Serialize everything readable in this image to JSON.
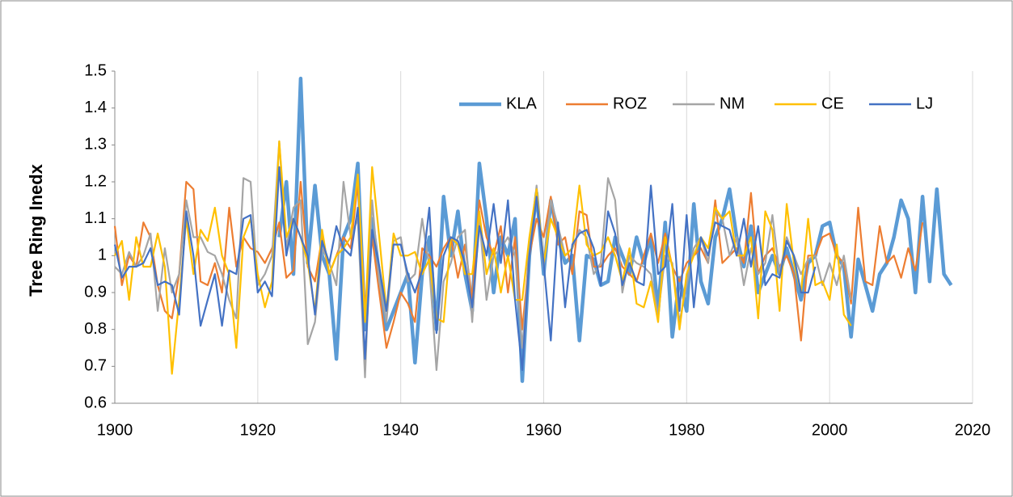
{
  "chart_data": {
    "type": "line",
    "ylabel": "Tree Ring Inedx",
    "x": [
      1900,
      1901,
      1902,
      1903,
      1904,
      1905,
      1906,
      1907,
      1908,
      1909,
      1910,
      1911,
      1912,
      1913,
      1914,
      1915,
      1916,
      1917,
      1918,
      1919,
      1920,
      1921,
      1922,
      1923,
      1924,
      1925,
      1926,
      1927,
      1928,
      1929,
      1930,
      1931,
      1932,
      1933,
      1934,
      1935,
      1936,
      1937,
      1938,
      1939,
      1940,
      1941,
      1942,
      1943,
      1944,
      1945,
      1946,
      1947,
      1948,
      1949,
      1950,
      1951,
      1952,
      1953,
      1954,
      1955,
      1956,
      1957,
      1958,
      1959,
      1960,
      1961,
      1962,
      1963,
      1964,
      1965,
      1966,
      1967,
      1968,
      1969,
      1970,
      1971,
      1972,
      1973,
      1974,
      1975,
      1976,
      1977,
      1978,
      1979,
      1980,
      1981,
      1982,
      1983,
      1984,
      1985,
      1986,
      1987,
      1988,
      1989,
      1990,
      1991,
      1992,
      1993,
      1994,
      1995,
      1996,
      1997,
      1998,
      1999,
      2000,
      2001,
      2002,
      2003,
      2004,
      2005,
      2006,
      2007,
      2008,
      2009,
      2010,
      2011,
      2012,
      2013,
      2014,
      2015,
      2016,
      2017
    ],
    "series": [
      {
        "name": "KLA",
        "color": "#5b9bd5",
        "values": [
          null,
          null,
          null,
          null,
          null,
          null,
          null,
          null,
          null,
          null,
          null,
          null,
          null,
          null,
          null,
          null,
          null,
          null,
          null,
          null,
          null,
          null,
          null,
          1.05,
          1.2,
          0.95,
          1.48,
          0.98,
          1.19,
          1.0,
          0.95,
          0.72,
          1.05,
          1.1,
          1.25,
          0.8,
          1.1,
          0.95,
          0.8,
          0.85,
          0.9,
          0.95,
          0.71,
          0.95,
          1.05,
          0.8,
          1.16,
          1.0,
          1.12,
          0.95,
          0.85,
          1.25,
          1.1,
          0.9,
          1.05,
          1.0,
          1.1,
          0.66,
          1.0,
          1.17,
          0.95,
          1.15,
          1.05,
          0.98,
          1.0,
          0.77,
          1.0,
          0.99,
          0.92,
          0.93,
          1.05,
          1.0,
          0.95,
          1.05,
          0.98,
          1.05,
          0.85,
          1.09,
          0.78,
          0.94,
          0.85,
          1.14,
          0.93,
          0.87,
          1.05,
          1.1,
          1.18,
          1.05,
          0.97,
          1.08,
          0.9,
          0.95,
          1.0,
          0.95,
          1.02,
          0.95,
          0.88,
          0.98,
          1.0,
          1.08,
          1.09,
          1.0,
          0.97,
          0.78,
          0.99,
          0.92,
          0.85,
          0.95,
          0.98,
          1.05,
          1.15,
          1.1,
          0.9,
          1.16,
          0.93,
          1.18,
          0.95,
          0.92
        ]
      },
      {
        "name": "ROZ",
        "color": "#ed7d31",
        "values": [
          1.08,
          0.92,
          1.0,
          0.97,
          1.09,
          1.05,
          0.92,
          0.85,
          0.83,
          0.95,
          1.2,
          1.18,
          0.93,
          0.92,
          0.98,
          0.9,
          1.13,
          0.97,
          1.05,
          1.02,
          1.01,
          0.98,
          1.02,
          1.09,
          0.94,
          0.96,
          1.2,
          0.97,
          0.93,
          1.05,
          0.95,
          1.0,
          1.05,
          1.02,
          1.2,
          0.85,
          1.05,
          0.9,
          0.75,
          0.82,
          0.9,
          0.87,
          0.82,
          1.02,
          1.0,
          0.97,
          1.02,
          1.05,
          0.94,
          1.03,
          0.88,
          1.15,
          1.05,
          1.0,
          1.08,
          0.9,
          1.05,
          0.8,
          1.0,
          1.1,
          1.05,
          1.16,
          1.03,
          1.05,
          0.95,
          1.12,
          1.11,
          0.97,
          0.97,
          1.0,
          1.02,
          0.97,
          0.95,
          0.93,
          1.0,
          1.06,
          0.98,
          1.06,
          0.97,
          0.93,
          0.98,
          1.0,
          1.02,
          0.98,
          1.15,
          0.98,
          1.0,
          1.02,
          0.98,
          1.17,
          0.95,
          1.0,
          1.02,
          0.97,
          1.0,
          0.95,
          0.77,
          1.0,
          1.0,
          1.05,
          1.06,
          1.0,
          0.98,
          0.87,
          1.13,
          0.93,
          0.92,
          1.08,
          0.98,
          1.0,
          0.94,
          1.02,
          0.96,
          1.09,
          null,
          null,
          null,
          null
        ]
      },
      {
        "name": "NM",
        "color": "#a5a5a5",
        "values": [
          0.97,
          0.95,
          1.01,
          0.97,
          1.0,
          1.06,
          0.85,
          1.02,
          0.9,
          0.95,
          1.15,
          1.05,
          1.05,
          1.01,
          1.0,
          0.95,
          0.88,
          0.83,
          1.21,
          1.2,
          0.92,
          0.95,
          1.0,
          1.31,
          1.02,
          1.13,
          1.15,
          0.76,
          0.82,
          1.02,
          0.98,
          0.92,
          1.2,
          1.05,
          1.1,
          0.67,
          1.15,
          0.93,
          0.82,
          1.04,
          1.05,
          0.93,
          0.95,
          1.1,
          0.97,
          0.69,
          0.93,
          0.98,
          1.05,
          1.07,
          0.82,
          1.1,
          0.88,
          1.0,
          1.02,
          1.05,
          1.0,
          0.75,
          1.0,
          1.19,
          0.97,
          1.15,
          1.08,
          1.0,
          1.02,
          1.07,
          1.05,
          0.95,
          0.98,
          1.21,
          1.15,
          0.9,
          1.0,
          0.98,
          0.97,
          0.95,
          0.84,
          1.0,
          0.98,
          0.82,
          0.92,
          1.02,
          1.05,
          0.98,
          1.12,
          1.1,
          1.0,
          1.05,
          0.92,
          1.02,
          0.95,
          0.98,
          1.11,
          0.95,
          1.05,
          1.0,
          0.95,
          0.99,
          1.0,
          0.92,
          0.98,
          0.92,
          1.0,
          0.88,
          null,
          null,
          null,
          null,
          null,
          null,
          null,
          null,
          null,
          null,
          null,
          null,
          null,
          null
        ]
      },
      {
        "name": "CE",
        "color": "#ffc000",
        "values": [
          1.0,
          1.04,
          0.88,
          1.05,
          0.97,
          0.97,
          1.06,
          0.97,
          0.68,
          0.88,
          1.1,
          0.95,
          1.07,
          1.04,
          1.13,
          1.0,
          0.95,
          0.75,
          1.05,
          1.1,
          0.95,
          0.86,
          0.93,
          1.31,
          1.05,
          1.1,
          1.05,
          0.98,
          0.85,
          1.07,
          0.95,
          1.0,
          1.02,
          1.05,
          1.22,
          0.82,
          1.24,
          1.05,
          0.85,
          1.06,
          1.0,
          1.0,
          1.01,
          0.95,
          0.99,
          0.83,
          0.82,
          1.05,
          1.03,
          0.95,
          0.95,
          1.12,
          0.95,
          1.02,
          0.9,
          1.0,
          0.88,
          0.88,
          1.05,
          1.18,
          0.98,
          1.1,
          1.05,
          1.0,
          1.02,
          1.19,
          1.03,
          1.0,
          1.01,
          1.05,
          1.0,
          0.93,
          1.02,
          0.87,
          0.86,
          0.93,
          0.82,
          1.05,
          0.97,
          0.8,
          0.95,
          1.0,
          1.05,
          1.02,
          1.13,
          1.1,
          1.12,
          1.0,
          1.0,
          1.05,
          0.83,
          1.12,
          1.07,
          0.85,
          1.14,
          0.98,
          0.9,
          1.1,
          0.92,
          0.93,
          0.88,
          1.03,
          0.84,
          0.81,
          null,
          null,
          null,
          null,
          null,
          null,
          null,
          null,
          null,
          null,
          null,
          null,
          null,
          null
        ]
      },
      {
        "name": "LJ",
        "color": "#4472c4",
        "values": [
          1.03,
          0.94,
          0.97,
          0.97,
          0.98,
          1.02,
          0.92,
          0.93,
          0.92,
          0.84,
          1.12,
          1.0,
          0.81,
          0.88,
          0.95,
          0.81,
          0.96,
          0.95,
          1.1,
          1.11,
          0.9,
          0.93,
          0.89,
          1.24,
          1.0,
          1.1,
          1.05,
          1.0,
          0.84,
          1.04,
          0.98,
          1.08,
          1.02,
          1.0,
          1.13,
          0.72,
          1.07,
          0.97,
          0.85,
          1.03,
          1.03,
          0.95,
          0.9,
          0.96,
          1.13,
          0.79,
          1.0,
          1.05,
          1.04,
          0.98,
          0.86,
          1.08,
          1.0,
          1.14,
          0.98,
          1.15,
          0.88,
          0.69,
          1.0,
          1.16,
          0.98,
          0.77,
          1.09,
          0.86,
          1.03,
          1.06,
          1.07,
          1.02,
          0.92,
          1.12,
          1.06,
          0.92,
          0.98,
          0.93,
          0.92,
          1.19,
          0.95,
          0.97,
          1.14,
          0.85,
          1.11,
          0.86,
          1.05,
          1.0,
          1.09,
          1.08,
          1.07,
          1.0,
          1.1,
          0.97,
          1.08,
          0.92,
          0.95,
          0.94,
          1.04,
          1.0,
          0.9,
          0.9,
          0.97,
          null,
          null,
          null,
          null,
          null,
          null,
          null,
          null,
          null,
          null,
          null,
          null,
          null,
          null,
          null,
          null,
          null,
          null,
          null
        ]
      }
    ],
    "xlim": [
      1900,
      2020
    ],
    "xticks": [
      1900,
      1920,
      1940,
      1960,
      1980,
      2000,
      2020
    ],
    "ylim": [
      0.6,
      1.5
    ],
    "yticks": [
      0.6,
      0.7,
      0.8,
      0.9,
      1,
      1.1,
      1.2,
      1.3,
      1.4,
      1.5
    ],
    "grid": "x",
    "legend": "top-right"
  }
}
